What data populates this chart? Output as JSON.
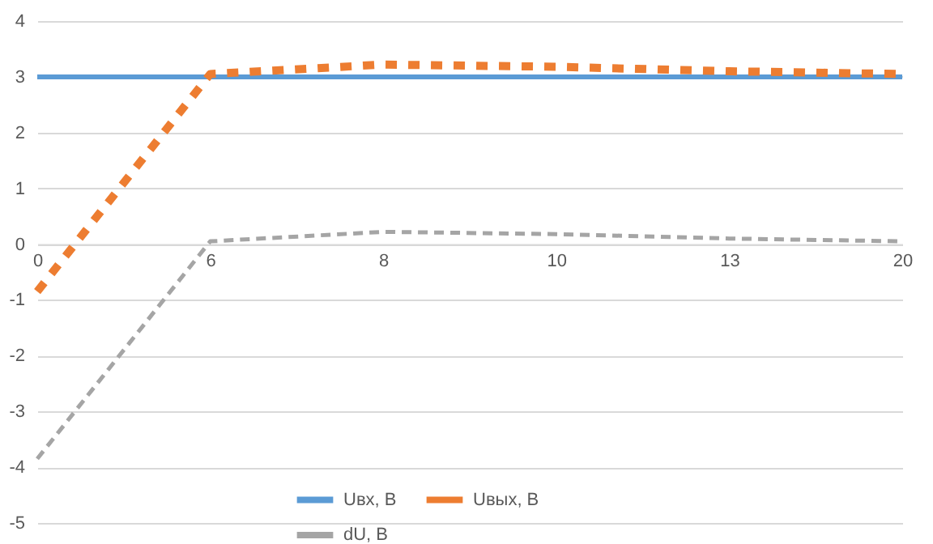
{
  "chart_data": {
    "type": "line",
    "categories": [
      "0",
      "6",
      "8",
      "10",
      "13",
      "20"
    ],
    "series": [
      {
        "name": "Uвх, В",
        "color": "#5b9bd5",
        "line_style": "solid",
        "values": [
          3,
          3,
          3,
          3,
          3,
          3
        ]
      },
      {
        "name": "Uвых, В",
        "color": "#ed7d31",
        "line_style": "dashed",
        "values": [
          -0.85,
          3.05,
          3.22,
          3.18,
          3.1,
          3.05
        ]
      },
      {
        "name": "dU, В",
        "color": "#a5a5a5",
        "line_style": "dashed",
        "values": [
          -3.85,
          0.05,
          0.22,
          0.18,
          0.1,
          0.05
        ]
      }
    ],
    "ylim": [
      -5,
      4
    ],
    "yticks": [
      -5,
      -4,
      -3,
      -2,
      -1,
      0,
      1,
      2,
      3,
      4
    ],
    "grid": "y",
    "legend": "bottom",
    "marker": "none"
  }
}
